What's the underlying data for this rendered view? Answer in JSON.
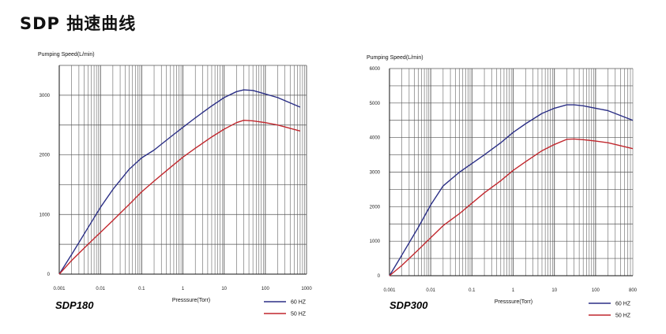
{
  "page": {
    "title": "SDP 抽速曲线"
  },
  "colors": {
    "hz60": "#2b2f86",
    "hz50": "#c1272d",
    "grid": "#555555"
  },
  "chart_data": [
    {
      "type": "line",
      "model": "SDP180",
      "ylabel": "Pumping Speed(L/min)",
      "xlabel": "Presssure(Torr)",
      "xscale": "log",
      "xlim": [
        0.001,
        1000
      ],
      "ylim": [
        0,
        3500
      ],
      "x_ticks": [
        {
          "v": 0.001,
          "label": "0.001"
        },
        {
          "v": 0.01,
          "label": "0.01"
        },
        {
          "v": 0.1,
          "label": "0.1"
        },
        {
          "v": 1,
          "label": "1"
        },
        {
          "v": 10,
          "label": "10"
        },
        {
          "v": 100,
          "label": "100"
        },
        {
          "v": 1000,
          "label": "1000"
        }
      ],
      "y_ticks": [
        {
          "v": 0,
          "label": "0"
        },
        {
          "v": 1000,
          "label": "1000"
        },
        {
          "v": 2000,
          "label": "2000"
        },
        {
          "v": 3000,
          "label": "3000"
        }
      ],
      "grid": true,
      "legend_position": "bottom-right",
      "series": [
        {
          "name": "60 HZ",
          "color": "#2b2f86",
          "x": [
            0.001,
            0.002,
            0.005,
            0.01,
            0.02,
            0.05,
            0.1,
            0.2,
            0.5,
            1,
            2,
            5,
            10,
            20,
            30,
            50,
            100,
            200,
            700
          ],
          "y": [
            0,
            330,
            780,
            1120,
            1420,
            1760,
            1950,
            2080,
            2300,
            2460,
            2620,
            2820,
            2960,
            3060,
            3090,
            3080,
            3020,
            2960,
            2800
          ]
        },
        {
          "name": "50 HZ",
          "color": "#c1272d",
          "x": [
            0.001,
            0.002,
            0.005,
            0.01,
            0.02,
            0.05,
            0.1,
            0.2,
            0.5,
            1,
            2,
            5,
            10,
            20,
            30,
            50,
            100,
            200,
            700
          ],
          "y": [
            0,
            230,
            500,
            700,
            900,
            1170,
            1380,
            1560,
            1790,
            1960,
            2110,
            2300,
            2430,
            2540,
            2580,
            2570,
            2540,
            2500,
            2400
          ]
        }
      ]
    },
    {
      "type": "line",
      "model": "SDP300",
      "ylabel": "Pumping Speed(L/min)",
      "xlabel": "Presssure(Torr)",
      "xscale": "log",
      "xlim": [
        0.001,
        800
      ],
      "ylim": [
        0,
        6000
      ],
      "x_ticks": [
        {
          "v": 0.001,
          "label": "0.001"
        },
        {
          "v": 0.01,
          "label": "0.01"
        },
        {
          "v": 0.1,
          "label": "0.1"
        },
        {
          "v": 1,
          "label": "1"
        },
        {
          "v": 10,
          "label": "10"
        },
        {
          "v": 100,
          "label": "100"
        },
        {
          "v": 800,
          "label": "800"
        }
      ],
      "y_ticks": [
        {
          "v": 0,
          "label": "0"
        },
        {
          "v": 1000,
          "label": "1000"
        },
        {
          "v": 2000,
          "label": "2000"
        },
        {
          "v": 3000,
          "label": "3000"
        },
        {
          "v": 4000,
          "label": "4000"
        },
        {
          "v": 5000,
          "label": "5000"
        },
        {
          "v": 6000,
          "label": "6000"
        }
      ],
      "grid": true,
      "legend_position": "bottom-right",
      "series": [
        {
          "name": "60 HZ",
          "color": "#2b2f86",
          "x": [
            0.001,
            0.002,
            0.005,
            0.01,
            0.02,
            0.05,
            0.1,
            0.2,
            0.5,
            1,
            2,
            5,
            10,
            20,
            30,
            50,
            100,
            200,
            800
          ],
          "y": [
            0,
            600,
            1400,
            2050,
            2600,
            3000,
            3250,
            3500,
            3850,
            4150,
            4400,
            4700,
            4850,
            4950,
            4950,
            4920,
            4850,
            4780,
            4500
          ]
        },
        {
          "name": "50 HZ",
          "color": "#c1272d",
          "x": [
            0.001,
            0.002,
            0.005,
            0.01,
            0.02,
            0.05,
            0.1,
            0.2,
            0.5,
            1,
            2,
            5,
            10,
            20,
            30,
            50,
            100,
            200,
            800
          ],
          "y": [
            0,
            300,
            750,
            1100,
            1450,
            1800,
            2100,
            2400,
            2750,
            3050,
            3300,
            3620,
            3800,
            3950,
            3960,
            3940,
            3900,
            3850,
            3680
          ]
        }
      ]
    }
  ]
}
